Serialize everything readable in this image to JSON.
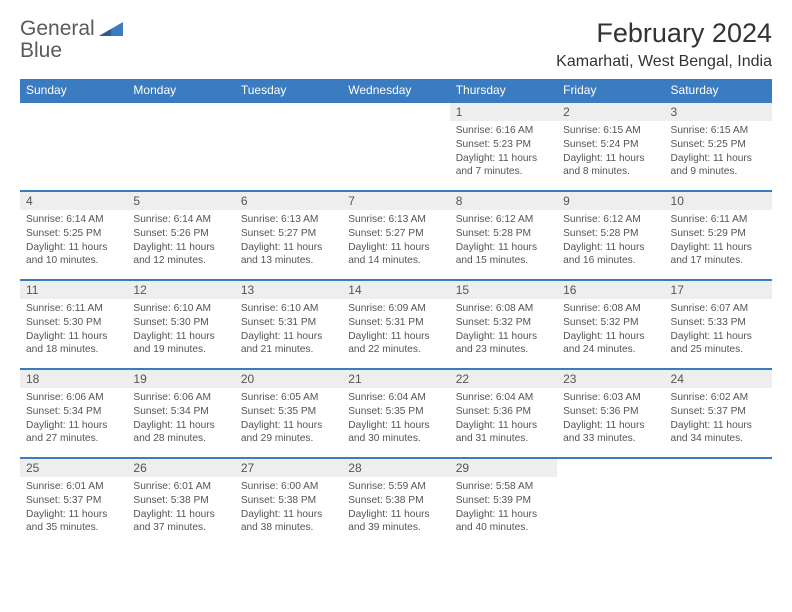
{
  "logo": {
    "text1": "General",
    "text2": "Blue"
  },
  "title": "February 2024",
  "location": "Kamarhati, West Bengal, India",
  "colors": {
    "brand": "#3b7bbf",
    "header_bg": "#3b7bbf",
    "header_text": "#ffffff",
    "daynum_bg": "#eeeeee",
    "text": "#555555",
    "page_bg": "#ffffff"
  },
  "weekdays": [
    "Sunday",
    "Monday",
    "Tuesday",
    "Wednesday",
    "Thursday",
    "Friday",
    "Saturday"
  ],
  "weeks": [
    [
      null,
      null,
      null,
      null,
      {
        "n": "1",
        "sr": "6:16 AM",
        "ss": "5:23 PM",
        "dh": "11",
        "dm": "7"
      },
      {
        "n": "2",
        "sr": "6:15 AM",
        "ss": "5:24 PM",
        "dh": "11",
        "dm": "8"
      },
      {
        "n": "3",
        "sr": "6:15 AM",
        "ss": "5:25 PM",
        "dh": "11",
        "dm": "9"
      }
    ],
    [
      {
        "n": "4",
        "sr": "6:14 AM",
        "ss": "5:25 PM",
        "dh": "11",
        "dm": "10"
      },
      {
        "n": "5",
        "sr": "6:14 AM",
        "ss": "5:26 PM",
        "dh": "11",
        "dm": "12"
      },
      {
        "n": "6",
        "sr": "6:13 AM",
        "ss": "5:27 PM",
        "dh": "11",
        "dm": "13"
      },
      {
        "n": "7",
        "sr": "6:13 AM",
        "ss": "5:27 PM",
        "dh": "11",
        "dm": "14"
      },
      {
        "n": "8",
        "sr": "6:12 AM",
        "ss": "5:28 PM",
        "dh": "11",
        "dm": "15"
      },
      {
        "n": "9",
        "sr": "6:12 AM",
        "ss": "5:28 PM",
        "dh": "11",
        "dm": "16"
      },
      {
        "n": "10",
        "sr": "6:11 AM",
        "ss": "5:29 PM",
        "dh": "11",
        "dm": "17"
      }
    ],
    [
      {
        "n": "11",
        "sr": "6:11 AM",
        "ss": "5:30 PM",
        "dh": "11",
        "dm": "18"
      },
      {
        "n": "12",
        "sr": "6:10 AM",
        "ss": "5:30 PM",
        "dh": "11",
        "dm": "19"
      },
      {
        "n": "13",
        "sr": "6:10 AM",
        "ss": "5:31 PM",
        "dh": "11",
        "dm": "21"
      },
      {
        "n": "14",
        "sr": "6:09 AM",
        "ss": "5:31 PM",
        "dh": "11",
        "dm": "22"
      },
      {
        "n": "15",
        "sr": "6:08 AM",
        "ss": "5:32 PM",
        "dh": "11",
        "dm": "23"
      },
      {
        "n": "16",
        "sr": "6:08 AM",
        "ss": "5:32 PM",
        "dh": "11",
        "dm": "24"
      },
      {
        "n": "17",
        "sr": "6:07 AM",
        "ss": "5:33 PM",
        "dh": "11",
        "dm": "25"
      }
    ],
    [
      {
        "n": "18",
        "sr": "6:06 AM",
        "ss": "5:34 PM",
        "dh": "11",
        "dm": "27"
      },
      {
        "n": "19",
        "sr": "6:06 AM",
        "ss": "5:34 PM",
        "dh": "11",
        "dm": "28"
      },
      {
        "n": "20",
        "sr": "6:05 AM",
        "ss": "5:35 PM",
        "dh": "11",
        "dm": "29"
      },
      {
        "n": "21",
        "sr": "6:04 AM",
        "ss": "5:35 PM",
        "dh": "11",
        "dm": "30"
      },
      {
        "n": "22",
        "sr": "6:04 AM",
        "ss": "5:36 PM",
        "dh": "11",
        "dm": "31"
      },
      {
        "n": "23",
        "sr": "6:03 AM",
        "ss": "5:36 PM",
        "dh": "11",
        "dm": "33"
      },
      {
        "n": "24",
        "sr": "6:02 AM",
        "ss": "5:37 PM",
        "dh": "11",
        "dm": "34"
      }
    ],
    [
      {
        "n": "25",
        "sr": "6:01 AM",
        "ss": "5:37 PM",
        "dh": "11",
        "dm": "35"
      },
      {
        "n": "26",
        "sr": "6:01 AM",
        "ss": "5:38 PM",
        "dh": "11",
        "dm": "37"
      },
      {
        "n": "27",
        "sr": "6:00 AM",
        "ss": "5:38 PM",
        "dh": "11",
        "dm": "38"
      },
      {
        "n": "28",
        "sr": "5:59 AM",
        "ss": "5:38 PM",
        "dh": "11",
        "dm": "39"
      },
      {
        "n": "29",
        "sr": "5:58 AM",
        "ss": "5:39 PM",
        "dh": "11",
        "dm": "40"
      },
      null,
      null
    ]
  ],
  "labels": {
    "sunrise": "Sunrise:",
    "sunset": "Sunset:",
    "daylight": "Daylight:",
    "hours": "hours",
    "and": "and",
    "minutes": "minutes."
  }
}
